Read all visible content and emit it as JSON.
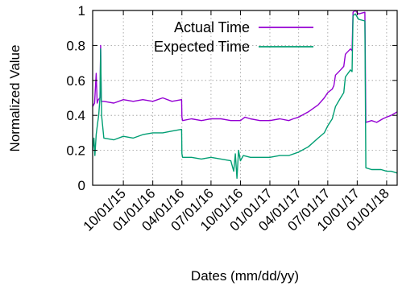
{
  "chart_data": {
    "type": "line",
    "xlabel": "Dates (mm/dd/yy)",
    "ylabel": "Normalized Value",
    "xlim": [
      "2015-06-27",
      "2018-02-03"
    ],
    "ylim": [
      0,
      1
    ],
    "grid": true,
    "legend_position": "top-right",
    "x_ticks": [
      "10/01/15",
      "01/01/16",
      "04/01/16",
      "07/01/16",
      "10/01/16",
      "01/01/17",
      "04/01/17",
      "07/01/17",
      "10/01/17",
      "01/01/18"
    ],
    "y_ticks": [
      "0",
      "0.2",
      "0.4",
      "0.6",
      "0.8",
      "1"
    ],
    "series": [
      {
        "name": "Actual Time",
        "color": "#9400d3",
        "points": [
          [
            "2015-06-27",
            0.45
          ],
          [
            "2015-07-03",
            0.47
          ],
          [
            "2015-07-08",
            0.64
          ],
          [
            "2015-07-11",
            0.47
          ],
          [
            "2015-07-15",
            0.49
          ],
          [
            "2015-07-20",
            0.5
          ],
          [
            "2015-07-22",
            0.8
          ],
          [
            "2015-07-24",
            0.48
          ],
          [
            "2015-08-01",
            0.48
          ],
          [
            "2015-09-01",
            0.47
          ],
          [
            "2015-10-01",
            0.49
          ],
          [
            "2015-11-01",
            0.48
          ],
          [
            "2015-12-01",
            0.49
          ],
          [
            "2016-01-01",
            0.48
          ],
          [
            "2016-02-01",
            0.5
          ],
          [
            "2016-03-01",
            0.48
          ],
          [
            "2016-03-31",
            0.49
          ],
          [
            "2016-04-01",
            0.39
          ],
          [
            "2016-04-03",
            0.37
          ],
          [
            "2016-05-01",
            0.38
          ],
          [
            "2016-06-01",
            0.37
          ],
          [
            "2016-07-01",
            0.38
          ],
          [
            "2016-08-01",
            0.38
          ],
          [
            "2016-09-01",
            0.37
          ],
          [
            "2016-10-01",
            0.37
          ],
          [
            "2016-10-15",
            0.39
          ],
          [
            "2016-11-01",
            0.38
          ],
          [
            "2016-12-01",
            0.37
          ],
          [
            "2017-01-01",
            0.37
          ],
          [
            "2017-02-01",
            0.38
          ],
          [
            "2017-03-01",
            0.37
          ],
          [
            "2017-03-15",
            0.38
          ],
          [
            "2017-04-01",
            0.39
          ],
          [
            "2017-05-01",
            0.42
          ],
          [
            "2017-06-01",
            0.46
          ],
          [
            "2017-06-20",
            0.5
          ],
          [
            "2017-07-01",
            0.53
          ],
          [
            "2017-07-15",
            0.55
          ],
          [
            "2017-07-20",
            0.57
          ],
          [
            "2017-07-25",
            0.63
          ],
          [
            "2017-08-10",
            0.66
          ],
          [
            "2017-08-20",
            0.68
          ],
          [
            "2017-08-25",
            0.75
          ],
          [
            "2017-09-10",
            0.78
          ],
          [
            "2017-09-15",
            0.77
          ],
          [
            "2017-09-18",
            0.99
          ],
          [
            "2017-09-25",
            1.0
          ],
          [
            "2017-10-05",
            0.98
          ],
          [
            "2017-10-25",
            0.99
          ],
          [
            "2017-10-28",
            0.36
          ],
          [
            "2017-11-15",
            0.37
          ],
          [
            "2017-12-01",
            0.36
          ],
          [
            "2017-12-20",
            0.38
          ],
          [
            "2018-01-01",
            0.39
          ],
          [
            "2018-01-15",
            0.4
          ],
          [
            "2018-02-03",
            0.42
          ]
        ]
      },
      {
        "name": "Expected Time",
        "color": "#009e73",
        "points": [
          [
            "2015-06-27",
            0.2
          ],
          [
            "2015-07-01",
            0.27
          ],
          [
            "2015-07-04",
            0.17
          ],
          [
            "2015-07-08",
            0.29
          ],
          [
            "2015-07-12",
            0.35
          ],
          [
            "2015-07-16",
            0.4
          ],
          [
            "2015-07-20",
            0.5
          ],
          [
            "2015-07-22",
            0.78
          ],
          [
            "2015-07-25",
            0.4
          ],
          [
            "2015-08-01",
            0.27
          ],
          [
            "2015-09-01",
            0.26
          ],
          [
            "2015-10-01",
            0.28
          ],
          [
            "2015-11-01",
            0.27
          ],
          [
            "2015-12-01",
            0.29
          ],
          [
            "2016-01-01",
            0.3
          ],
          [
            "2016-02-01",
            0.3
          ],
          [
            "2016-03-01",
            0.31
          ],
          [
            "2016-03-31",
            0.32
          ],
          [
            "2016-04-01",
            0.18
          ],
          [
            "2016-04-03",
            0.16
          ],
          [
            "2016-05-01",
            0.16
          ],
          [
            "2016-06-01",
            0.15
          ],
          [
            "2016-07-01",
            0.16
          ],
          [
            "2016-08-01",
            0.15
          ],
          [
            "2016-09-01",
            0.14
          ],
          [
            "2016-09-10",
            0.08
          ],
          [
            "2016-09-15",
            0.18
          ],
          [
            "2016-09-20",
            0.04
          ],
          [
            "2016-09-25",
            0.2
          ],
          [
            "2016-10-01",
            0.14
          ],
          [
            "2016-10-10",
            0.17
          ],
          [
            "2016-11-01",
            0.16
          ],
          [
            "2016-12-01",
            0.16
          ],
          [
            "2017-01-01",
            0.16
          ],
          [
            "2017-02-01",
            0.17
          ],
          [
            "2017-03-01",
            0.17
          ],
          [
            "2017-04-01",
            0.19
          ],
          [
            "2017-05-01",
            0.22
          ],
          [
            "2017-06-01",
            0.27
          ],
          [
            "2017-06-20",
            0.3
          ],
          [
            "2017-07-01",
            0.34
          ],
          [
            "2017-07-15",
            0.38
          ],
          [
            "2017-07-25",
            0.45
          ],
          [
            "2017-08-10",
            0.5
          ],
          [
            "2017-08-20",
            0.53
          ],
          [
            "2017-08-25",
            0.62
          ],
          [
            "2017-09-10",
            0.66
          ],
          [
            "2017-09-15",
            0.65
          ],
          [
            "2017-09-18",
            0.97
          ],
          [
            "2017-09-25",
            0.98
          ],
          [
            "2017-10-05",
            0.95
          ],
          [
            "2017-10-25",
            0.94
          ],
          [
            "2017-10-28",
            0.1
          ],
          [
            "2017-11-15",
            0.09
          ],
          [
            "2017-12-15",
            0.09
          ],
          [
            "2018-01-01",
            0.08
          ],
          [
            "2018-01-15",
            0.08
          ],
          [
            "2018-02-03",
            0.07
          ]
        ]
      }
    ]
  }
}
